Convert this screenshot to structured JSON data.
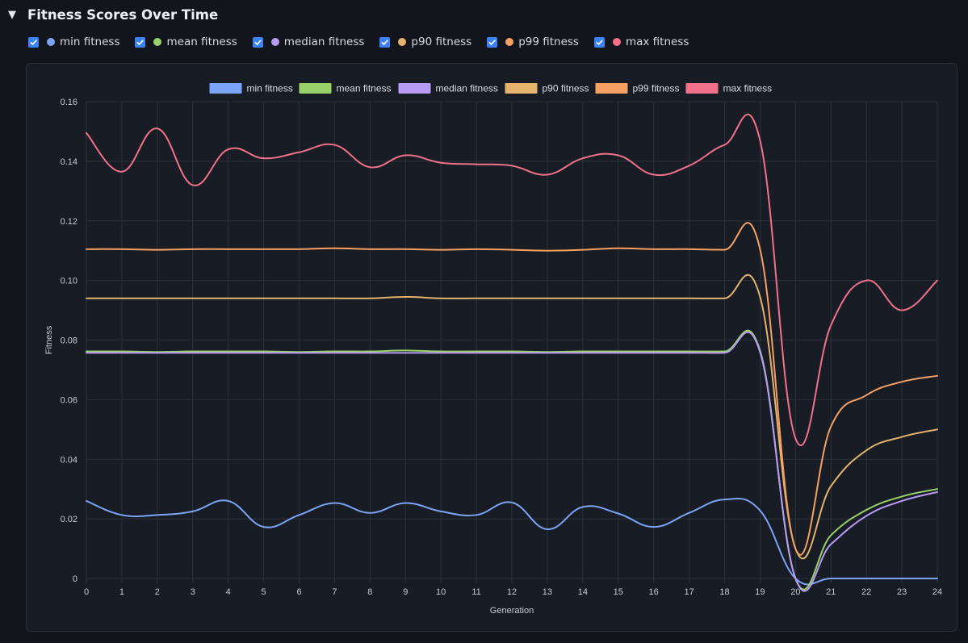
{
  "section": {
    "title": "Fitness Scores Over Time",
    "caret": "▼"
  },
  "toggles": [
    {
      "label": "min fitness",
      "color": "#7ba4f7",
      "checked": true
    },
    {
      "label": "mean fitness",
      "color": "#98d16a",
      "checked": true
    },
    {
      "label": "median fitness",
      "color": "#b89bf5",
      "checked": true
    },
    {
      "label": "p90 fitness",
      "color": "#e4b36e",
      "checked": true
    },
    {
      "label": "p99 fitness",
      "color": "#f7a063",
      "checked": true
    },
    {
      "label": "max fitness",
      "color": "#f07189",
      "checked": true
    }
  ],
  "colors": {
    "checkbox": "#3b82f6",
    "grid": "#2b303b",
    "tick_text": "#c7cad2"
  },
  "chart_data": {
    "type": "line",
    "xlabel": "Generation",
    "ylabel": "Fitness",
    "xlim": [
      0,
      24
    ],
    "ylim": [
      0,
      0.16
    ],
    "grid": true,
    "legend_position": "top",
    "x": [
      0,
      1,
      2,
      3,
      4,
      5,
      6,
      7,
      8,
      9,
      10,
      11,
      12,
      13,
      14,
      15,
      16,
      17,
      18,
      19,
      20,
      21,
      22,
      23,
      24
    ],
    "y_ticks": [
      "0",
      "0.02",
      "0.04",
      "0.06",
      "0.08",
      "0.10",
      "0.12",
      "0.14",
      "0.16"
    ],
    "y_tick_values": [
      0,
      0.02,
      0.04,
      0.06,
      0.08,
      0.1,
      0.12,
      0.14,
      0.16
    ],
    "series": [
      {
        "name": "min fitness",
        "color": "#7ba4f7",
        "values": [
          0.026,
          0.0213,
          0.0213,
          0.0225,
          0.026,
          0.0173,
          0.0213,
          0.0253,
          0.022,
          0.0253,
          0.0225,
          0.0213,
          0.0255,
          0.0165,
          0.024,
          0.0218,
          0.0173,
          0.022,
          0.0265,
          0.0228,
          0,
          0,
          0,
          0,
          0
        ]
      },
      {
        "name": "mean fitness",
        "color": "#98d16a",
        "values": [
          0.0762,
          0.0762,
          0.076,
          0.0762,
          0.0762,
          0.0762,
          0.076,
          0.0762,
          0.0762,
          0.0765,
          0.0762,
          0.0762,
          0.0762,
          0.076,
          0.0762,
          0.0762,
          0.0762,
          0.0762,
          0.0762,
          0.0765,
          0,
          0.0145,
          0.023,
          0.0275,
          0.03
        ]
      },
      {
        "name": "median fitness",
        "color": "#b89bf5",
        "values": [
          0.0757,
          0.0757,
          0.0757,
          0.0757,
          0.0757,
          0.0757,
          0.0757,
          0.0757,
          0.0757,
          0.0757,
          0.0757,
          0.0757,
          0.0757,
          0.0757,
          0.0757,
          0.0757,
          0.0757,
          0.0757,
          0.0757,
          0.076,
          0,
          0.0115,
          0.021,
          0.026,
          0.029
        ]
      },
      {
        "name": "p90 fitness",
        "color": "#e4b36e",
        "values": [
          0.094,
          0.094,
          0.094,
          0.094,
          0.094,
          0.094,
          0.094,
          0.094,
          0.094,
          0.0945,
          0.094,
          0.094,
          0.094,
          0.094,
          0.094,
          0.094,
          0.094,
          0.094,
          0.094,
          0.0945,
          0.01,
          0.031,
          0.043,
          0.0475,
          0.05
        ]
      },
      {
        "name": "p99 fitness",
        "color": "#f7a063",
        "values": [
          0.1105,
          0.1105,
          0.1103,
          0.1105,
          0.1105,
          0.1105,
          0.1105,
          0.1108,
          0.1105,
          0.1105,
          0.1103,
          0.1105,
          0.1103,
          0.11,
          0.1103,
          0.1108,
          0.1105,
          0.1105,
          0.1103,
          0.1105,
          0.01,
          0.051,
          0.0615,
          0.066,
          0.068
        ]
      },
      {
        "name": "max fitness",
        "color": "#f07189",
        "values": [
          0.1495,
          0.1365,
          0.151,
          0.132,
          0.144,
          0.141,
          0.143,
          0.1455,
          0.138,
          0.142,
          0.1395,
          0.139,
          0.1385,
          0.1355,
          0.141,
          0.142,
          0.1355,
          0.1385,
          0.1455,
          0.147,
          0.047,
          0.085,
          0.1,
          0.09,
          0.1
        ]
      }
    ]
  }
}
